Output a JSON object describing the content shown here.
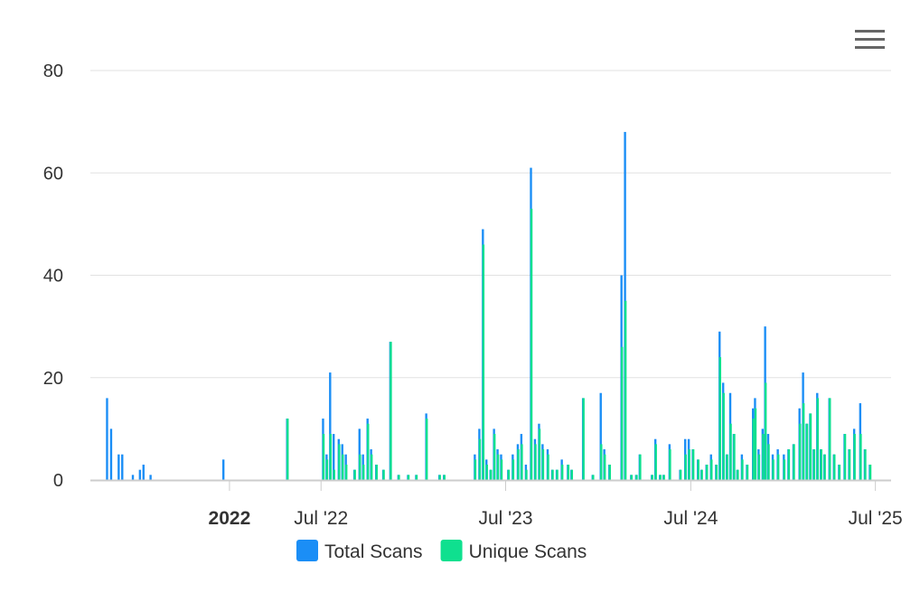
{
  "menu": {
    "icon": "hamburger-menu-icon"
  },
  "legend": [
    {
      "name": "Total Scans",
      "color": "#1b8ef6"
    },
    {
      "name": "Unique Scans",
      "color": "#0fe08f"
    }
  ],
  "chart_data": {
    "type": "bar",
    "x_axis": {
      "type": "datetime",
      "range": [
        "2021-04-01",
        "2025-08-01"
      ],
      "ticks": [
        {
          "date": "2022-01-01",
          "label": "2022",
          "bold": true
        },
        {
          "date": "2022-07-01",
          "label": "Jul '22",
          "bold": false
        },
        {
          "date": "2023-07-01",
          "label": "Jul '23",
          "bold": false
        },
        {
          "date": "2024-07-01",
          "label": "Jul '24",
          "bold": false
        },
        {
          "date": "2025-07-01",
          "label": "Jul '25",
          "bold": false
        }
      ]
    },
    "y_axis": {
      "ylim": [
        0,
        80
      ],
      "ticks": [
        0,
        20,
        40,
        60,
        80
      ]
    },
    "grid": true,
    "legend_position": "bottom-center",
    "series": [
      {
        "name": "Total Scans",
        "color": "#1b8ef6",
        "points": [
          [
            "2021-05-04",
            16
          ],
          [
            "2021-05-12",
            10
          ],
          [
            "2021-05-27",
            5
          ],
          [
            "2021-06-03",
            5
          ],
          [
            "2021-06-24",
            1
          ],
          [
            "2021-07-08",
            2
          ],
          [
            "2021-07-15",
            3
          ],
          [
            "2021-07-29",
            1
          ],
          [
            "2021-12-20",
            4
          ],
          [
            "2022-04-25",
            12
          ],
          [
            "2022-07-05",
            12
          ],
          [
            "2022-07-12",
            5
          ],
          [
            "2022-07-19",
            21
          ],
          [
            "2022-07-26",
            9
          ],
          [
            "2022-08-05",
            8
          ],
          [
            "2022-08-12",
            7
          ],
          [
            "2022-08-19",
            5
          ],
          [
            "2022-09-05",
            2
          ],
          [
            "2022-09-15",
            10
          ],
          [
            "2022-09-22",
            5
          ],
          [
            "2022-10-01",
            12
          ],
          [
            "2022-10-08",
            6
          ],
          [
            "2022-10-18",
            3
          ],
          [
            "2022-11-01",
            2
          ],
          [
            "2022-11-15",
            27
          ],
          [
            "2022-12-01",
            1
          ],
          [
            "2022-12-20",
            1
          ],
          [
            "2023-01-05",
            1
          ],
          [
            "2023-01-25",
            13
          ],
          [
            "2023-02-20",
            1
          ],
          [
            "2023-03-01",
            1
          ],
          [
            "2023-05-01",
            5
          ],
          [
            "2023-05-10",
            10
          ],
          [
            "2023-05-17",
            49
          ],
          [
            "2023-05-24",
            4
          ],
          [
            "2023-06-01",
            2
          ],
          [
            "2023-06-08",
            10
          ],
          [
            "2023-06-15",
            6
          ],
          [
            "2023-06-22",
            5
          ],
          [
            "2023-07-06",
            2
          ],
          [
            "2023-07-15",
            5
          ],
          [
            "2023-07-25",
            7
          ],
          [
            "2023-08-01",
            9
          ],
          [
            "2023-08-10",
            3
          ],
          [
            "2023-08-20",
            61
          ],
          [
            "2023-08-28",
            8
          ],
          [
            "2023-09-05",
            11
          ],
          [
            "2023-09-12",
            7
          ],
          [
            "2023-09-22",
            6
          ],
          [
            "2023-10-01",
            2
          ],
          [
            "2023-10-10",
            2
          ],
          [
            "2023-10-20",
            4
          ],
          [
            "2023-11-01",
            3
          ],
          [
            "2023-11-08",
            2
          ],
          [
            "2023-12-01",
            16
          ],
          [
            "2023-12-20",
            1
          ],
          [
            "2024-01-05",
            17
          ],
          [
            "2024-01-12",
            6
          ],
          [
            "2024-01-22",
            3
          ],
          [
            "2024-02-15",
            40
          ],
          [
            "2024-02-22",
            68
          ],
          [
            "2024-03-05",
            1
          ],
          [
            "2024-03-15",
            1
          ],
          [
            "2024-03-22",
            5
          ],
          [
            "2024-04-15",
            1
          ],
          [
            "2024-04-22",
            8
          ],
          [
            "2024-05-01",
            1
          ],
          [
            "2024-05-08",
            1
          ],
          [
            "2024-05-20",
            7
          ],
          [
            "2024-06-10",
            2
          ],
          [
            "2024-06-20",
            8
          ],
          [
            "2024-06-27",
            8
          ],
          [
            "2024-07-05",
            6
          ],
          [
            "2024-07-15",
            4
          ],
          [
            "2024-07-22",
            2
          ],
          [
            "2024-08-01",
            3
          ],
          [
            "2024-08-10",
            5
          ],
          [
            "2024-08-20",
            3
          ],
          [
            "2024-08-27",
            29
          ],
          [
            "2024-09-03",
            19
          ],
          [
            "2024-09-10",
            5
          ],
          [
            "2024-09-17",
            17
          ],
          [
            "2024-09-24",
            9
          ],
          [
            "2024-10-01",
            2
          ],
          [
            "2024-10-10",
            5
          ],
          [
            "2024-10-20",
            3
          ],
          [
            "2024-11-01",
            14
          ],
          [
            "2024-11-05",
            16
          ],
          [
            "2024-11-12",
            6
          ],
          [
            "2024-11-20",
            10
          ],
          [
            "2024-11-25",
            30
          ],
          [
            "2024-12-01",
            9
          ],
          [
            "2024-12-10",
            5
          ],
          [
            "2024-12-20",
            6
          ],
          [
            "2025-01-01",
            5
          ],
          [
            "2025-01-10",
            6
          ],
          [
            "2025-01-20",
            7
          ],
          [
            "2025-02-01",
            14
          ],
          [
            "2025-02-08",
            21
          ],
          [
            "2025-02-15",
            11
          ],
          [
            "2025-02-22",
            13
          ],
          [
            "2025-03-01",
            6
          ],
          [
            "2025-03-08",
            17
          ],
          [
            "2025-03-15",
            6
          ],
          [
            "2025-03-22",
            5
          ],
          [
            "2025-04-01",
            16
          ],
          [
            "2025-04-10",
            5
          ],
          [
            "2025-04-20",
            3
          ],
          [
            "2025-05-01",
            9
          ],
          [
            "2025-05-10",
            6
          ],
          [
            "2025-05-20",
            10
          ],
          [
            "2025-06-01",
            15
          ],
          [
            "2025-06-10",
            6
          ],
          [
            "2025-06-20",
            3
          ]
        ]
      },
      {
        "name": "Unique Scans",
        "color": "#0fe08f",
        "points": [
          [
            "2022-04-26",
            12
          ],
          [
            "2022-07-06",
            9
          ],
          [
            "2022-07-13",
            4
          ],
          [
            "2022-07-20",
            9
          ],
          [
            "2022-07-27",
            2
          ],
          [
            "2022-08-06",
            7
          ],
          [
            "2022-08-13",
            5
          ],
          [
            "2022-08-20",
            3
          ],
          [
            "2022-09-06",
            2
          ],
          [
            "2022-09-16",
            5
          ],
          [
            "2022-09-23",
            3
          ],
          [
            "2022-10-02",
            11
          ],
          [
            "2022-10-09",
            5
          ],
          [
            "2022-10-19",
            3
          ],
          [
            "2022-11-02",
            2
          ],
          [
            "2022-11-16",
            27
          ],
          [
            "2022-12-02",
            1
          ],
          [
            "2022-12-21",
            1
          ],
          [
            "2023-01-06",
            1
          ],
          [
            "2023-01-26",
            12
          ],
          [
            "2023-02-21",
            1
          ],
          [
            "2023-03-02",
            1
          ],
          [
            "2023-05-02",
            4
          ],
          [
            "2023-05-11",
            8
          ],
          [
            "2023-05-18",
            46
          ],
          [
            "2023-05-25",
            3
          ],
          [
            "2023-06-02",
            2
          ],
          [
            "2023-06-09",
            9
          ],
          [
            "2023-06-16",
            5
          ],
          [
            "2023-06-23",
            4
          ],
          [
            "2023-07-07",
            2
          ],
          [
            "2023-07-16",
            4
          ],
          [
            "2023-07-26",
            6
          ],
          [
            "2023-08-02",
            7
          ],
          [
            "2023-08-11",
            2
          ],
          [
            "2023-08-21",
            53
          ],
          [
            "2023-08-29",
            7
          ],
          [
            "2023-09-06",
            10
          ],
          [
            "2023-09-13",
            6
          ],
          [
            "2023-09-23",
            5
          ],
          [
            "2023-10-02",
            2
          ],
          [
            "2023-10-11",
            2
          ],
          [
            "2023-10-21",
            3
          ],
          [
            "2023-11-02",
            3
          ],
          [
            "2023-11-09",
            2
          ],
          [
            "2023-12-02",
            16
          ],
          [
            "2023-12-21",
            1
          ],
          [
            "2024-01-06",
            7
          ],
          [
            "2024-01-13",
            5
          ],
          [
            "2024-01-23",
            3
          ],
          [
            "2024-02-16",
            26
          ],
          [
            "2024-02-23",
            35
          ],
          [
            "2024-03-06",
            1
          ],
          [
            "2024-03-16",
            1
          ],
          [
            "2024-03-23",
            5
          ],
          [
            "2024-04-16",
            1
          ],
          [
            "2024-04-23",
            7
          ],
          [
            "2024-05-02",
            1
          ],
          [
            "2024-05-09",
            1
          ],
          [
            "2024-05-21",
            6
          ],
          [
            "2024-06-11",
            2
          ],
          [
            "2024-06-21",
            5
          ],
          [
            "2024-06-28",
            6
          ],
          [
            "2024-07-06",
            6
          ],
          [
            "2024-07-16",
            4
          ],
          [
            "2024-07-23",
            2
          ],
          [
            "2024-08-02",
            3
          ],
          [
            "2024-08-11",
            4
          ],
          [
            "2024-08-21",
            3
          ],
          [
            "2024-08-28",
            24
          ],
          [
            "2024-09-04",
            17
          ],
          [
            "2024-09-11",
            5
          ],
          [
            "2024-09-18",
            11
          ],
          [
            "2024-09-25",
            9
          ],
          [
            "2024-10-02",
            2
          ],
          [
            "2024-10-11",
            4
          ],
          [
            "2024-10-21",
            3
          ],
          [
            "2024-11-02",
            12
          ],
          [
            "2024-11-06",
            14
          ],
          [
            "2024-11-13",
            5
          ],
          [
            "2024-11-21",
            9
          ],
          [
            "2024-11-26",
            19
          ],
          [
            "2024-12-02",
            7
          ],
          [
            "2024-12-11",
            4
          ],
          [
            "2024-12-21",
            5
          ],
          [
            "2025-01-02",
            4
          ],
          [
            "2025-01-11",
            6
          ],
          [
            "2025-01-21",
            7
          ],
          [
            "2025-02-02",
            11
          ],
          [
            "2025-02-09",
            15
          ],
          [
            "2025-02-16",
            11
          ],
          [
            "2025-02-23",
            13
          ],
          [
            "2025-03-02",
            6
          ],
          [
            "2025-03-09",
            16
          ],
          [
            "2025-03-16",
            6
          ],
          [
            "2025-03-23",
            5
          ],
          [
            "2025-04-02",
            16
          ],
          [
            "2025-04-11",
            5
          ],
          [
            "2025-04-21",
            3
          ],
          [
            "2025-05-02",
            9
          ],
          [
            "2025-05-11",
            6
          ],
          [
            "2025-05-21",
            9
          ],
          [
            "2025-06-02",
            9
          ],
          [
            "2025-06-11",
            6
          ],
          [
            "2025-06-21",
            3
          ]
        ]
      }
    ]
  }
}
